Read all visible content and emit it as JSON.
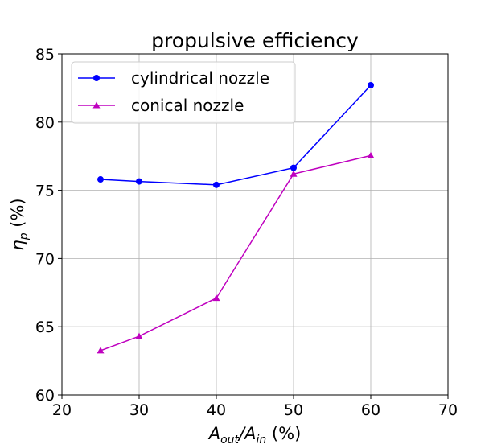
{
  "chart_data": {
    "type": "line",
    "title": "propulsive efficiency",
    "xlabel": {
      "base": "A",
      "sub1": "out",
      "sep": "/A",
      "sub2": "in",
      "unit": " (%)"
    },
    "ylabel": {
      "base": "η",
      "sub": "p",
      "unit": " (%)"
    },
    "xlim": [
      20,
      70
    ],
    "ylim": [
      60,
      85
    ],
    "xticks": [
      "20",
      "30",
      "40",
      "50",
      "60",
      "70"
    ],
    "yticks": [
      "60",
      "65",
      "70",
      "75",
      "80",
      "85"
    ],
    "grid": true,
    "legend_position": "upper-left",
    "series": [
      {
        "name": "cylindrical nozzle",
        "color": "#0000ff",
        "marker": "circle",
        "x": [
          25,
          30,
          40,
          50,
          60
        ],
        "y": [
          75.8,
          75.65,
          75.4,
          76.65,
          82.7
        ]
      },
      {
        "name": "conical nozzle",
        "color": "#bf00bf",
        "marker": "triangle",
        "x": [
          25,
          30,
          40,
          50,
          60
        ],
        "y": [
          63.25,
          64.3,
          67.1,
          76.2,
          77.55
        ]
      }
    ]
  }
}
